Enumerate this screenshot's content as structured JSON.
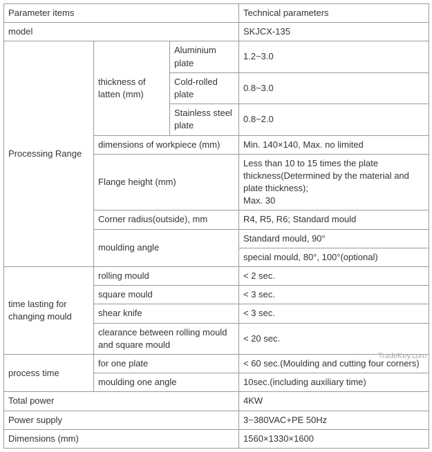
{
  "header": {
    "c1": "Parameter items",
    "c2": "Technical parameters"
  },
  "model": {
    "label": "model",
    "value": "SKJCX-135"
  },
  "processing_range": {
    "label": "Processing Range",
    "thickness": {
      "label": "thickness of latten (mm)",
      "rows": [
        {
          "material": "Aluminium plate",
          "value": "1.2~3.0"
        },
        {
          "material": "Cold-rolled plate",
          "value": "0.8~3.0"
        },
        {
          "material": "Stainless steel plate",
          "value": "0.8~2.0"
        }
      ]
    },
    "dimensions": {
      "label": "dimensions of workpiece (mm)",
      "value": "Min. 140×140, Max. no limited"
    },
    "flange": {
      "label": "Flange height (mm)",
      "value": "Less than 10 to 15 times the plate thickness(Determined by the material and plate thickness);\nMax. 30"
    },
    "corner": {
      "label": "Corner radius(outside), mm",
      "value": "R4, R5, R6; Standard mould"
    },
    "moulding_angle": {
      "label": "moulding angle",
      "values": [
        "Standard mould, 90°",
        "special mould, 80°, 100°(optional)"
      ]
    }
  },
  "changing_mould": {
    "label": "time lasting for changing mould",
    "rows": [
      {
        "item": "rolling mould",
        "value": "< 2 sec."
      },
      {
        "item": "square mould",
        "value": "< 3 sec."
      },
      {
        "item": "shear knife",
        "value": "< 3 sec."
      },
      {
        "item": "clearance between rolling mould and square mould",
        "value": "< 20 sec."
      }
    ]
  },
  "process_time": {
    "label": "process time",
    "rows": [
      {
        "item": "for one plate",
        "value": "< 60 sec.(Moulding and cutting four corners)"
      },
      {
        "item": "moulding one angle",
        "value": "10sec.(including auxiliary time)"
      }
    ]
  },
  "total_power": {
    "label": "Total power",
    "value": "4KW"
  },
  "power_supply": {
    "label": "Power supply",
    "value": "3~380VAC+PE   50Hz"
  },
  "dimensions": {
    "label": "Dimensions (mm)",
    "value": "1560×1330×1600"
  },
  "watermark": "TradeKey.com",
  "colwidths": {
    "c1": 130,
    "c2": 110,
    "c3": 100,
    "c4": 275
  }
}
